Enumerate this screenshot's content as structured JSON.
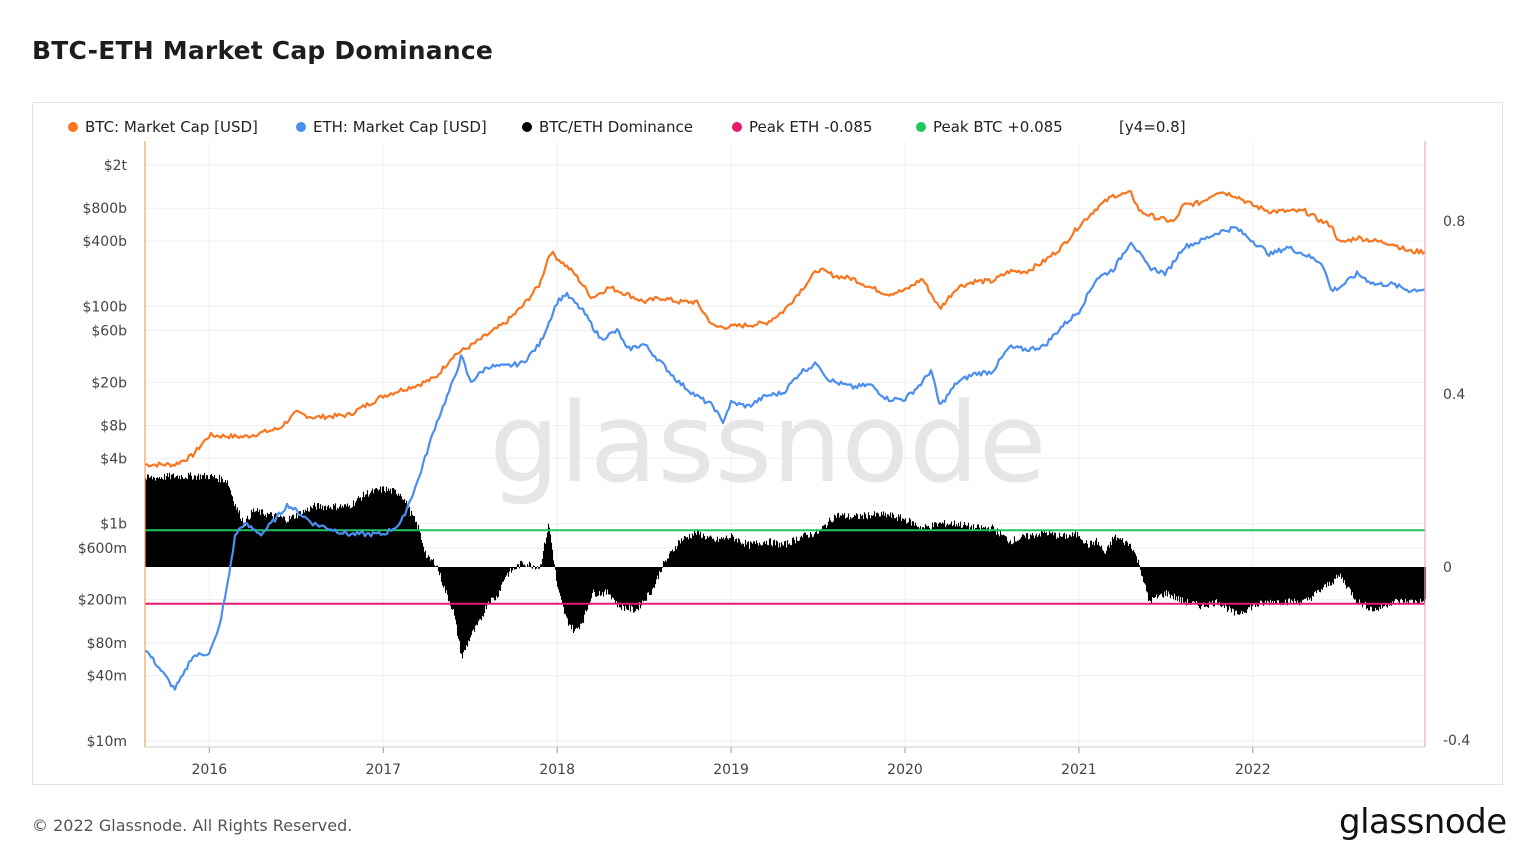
{
  "title": "BTC-ETH Market Cap Dominance",
  "footer": "© 2022 Glassnode. All Rights Reserved.",
  "brand": "glassnode",
  "watermark": "glassnode",
  "chart_data": {
    "type": "line",
    "x_ticks": [
      "2016",
      "2017",
      "2018",
      "2019",
      "2020",
      "2021",
      "2022"
    ],
    "x_range": [
      2015.63,
      2022.99
    ],
    "y_left": {
      "scale": "log",
      "ticks": [
        {
          "label": "$10m",
          "value": 10000000.0
        },
        {
          "label": "$40m",
          "value": 40000000.0
        },
        {
          "label": "$80m",
          "value": 80000000.0
        },
        {
          "label": "$200m",
          "value": 200000000.0
        },
        {
          "label": "$600m",
          "value": 600000000.0
        },
        {
          "label": "$1b",
          "value": 1000000000.0
        },
        {
          "label": "$4b",
          "value": 4000000000.0
        },
        {
          "label": "$8b",
          "value": 8000000000.0
        },
        {
          "label": "$20b",
          "value": 20000000000.0
        },
        {
          "label": "$60b",
          "value": 60000000000.0
        },
        {
          "label": "$100b",
          "value": 100000000000.0
        },
        {
          "label": "$400b",
          "value": 400000000000.0
        },
        {
          "label": "$800b",
          "value": 800000000000.0
        },
        {
          "label": "$2t",
          "value": 2000000000000.0
        }
      ]
    },
    "y_right": {
      "scale": "linear",
      "range": [
        -0.4,
        0.95
      ],
      "ticks": [
        {
          "label": "-0.4",
          "value": -0.4
        },
        {
          "label": "0",
          "value": 0
        },
        {
          "label": "0.4",
          "value": 0.4
        },
        {
          "label": "0.8",
          "value": 0.8
        }
      ]
    },
    "legend": [
      {
        "label": "BTC: Market Cap [USD]",
        "color": "#f7761f"
      },
      {
        "label": "ETH: Market Cap [USD]",
        "color": "#4a8ef0"
      },
      {
        "label": "BTC/ETH Dominance",
        "color": "#000000"
      },
      {
        "label": "Peak ETH -0.085",
        "color": "#e8196e"
      },
      {
        "label": "Peak BTC +0.085",
        "color": "#22c55e"
      },
      {
        "label": "[y4=0.8]",
        "color": ""
      }
    ],
    "legend_position": "top-left",
    "grid": true,
    "series": [
      {
        "name": "BTC: Market Cap [USD]",
        "axis": "left",
        "color": "#f7761f",
        "points": [
          [
            2015.63,
            3500000000.0
          ],
          [
            2015.8,
            3500000000.0
          ],
          [
            2015.9,
            4200000000.0
          ],
          [
            2016.0,
            6500000000.0
          ],
          [
            2016.2,
            6300000000.0
          ],
          [
            2016.4,
            7500000000.0
          ],
          [
            2016.5,
            10500000000.0
          ],
          [
            2016.6,
            9500000000.0
          ],
          [
            2016.8,
            10000000000.0
          ],
          [
            2017.0,
            15000000000.0
          ],
          [
            2017.1,
            17000000000.0
          ],
          [
            2017.2,
            19000000000.0
          ],
          [
            2017.3,
            22000000000.0
          ],
          [
            2017.4,
            35000000000.0
          ],
          [
            2017.5,
            43000000000.0
          ],
          [
            2017.6,
            55000000000.0
          ],
          [
            2017.7,
            70000000000.0
          ],
          [
            2017.8,
            100000000000.0
          ],
          [
            2017.9,
            160000000000.0
          ],
          [
            2017.96,
            320000000000.0
          ],
          [
            2018.1,
            200000000000.0
          ],
          [
            2018.2,
            120000000000.0
          ],
          [
            2018.3,
            150000000000.0
          ],
          [
            2018.4,
            130000000000.0
          ],
          [
            2018.5,
            110000000000.0
          ],
          [
            2018.6,
            120000000000.0
          ],
          [
            2018.7,
            110000000000.0
          ],
          [
            2018.8,
            110000000000.0
          ],
          [
            2018.9,
            65000000000.0
          ],
          [
            2019.0,
            65000000000.0
          ],
          [
            2019.2,
            70000000000.0
          ],
          [
            2019.3,
            90000000000.0
          ],
          [
            2019.4,
            140000000000.0
          ],
          [
            2019.5,
            220000000000.0
          ],
          [
            2019.6,
            190000000000.0
          ],
          [
            2019.7,
            180000000000.0
          ],
          [
            2019.8,
            150000000000.0
          ],
          [
            2019.9,
            130000000000.0
          ],
          [
            2020.0,
            140000000000.0
          ],
          [
            2020.1,
            180000000000.0
          ],
          [
            2020.2,
            95000000000.0
          ],
          [
            2020.3,
            150000000000.0
          ],
          [
            2020.4,
            170000000000.0
          ],
          [
            2020.5,
            170000000000.0
          ],
          [
            2020.6,
            210000000000.0
          ],
          [
            2020.7,
            210000000000.0
          ],
          [
            2020.8,
            260000000000.0
          ],
          [
            2020.9,
            350000000000.0
          ],
          [
            2021.0,
            550000000000.0
          ],
          [
            2021.1,
            800000000000.0
          ],
          [
            2021.2,
            1050000000000.0
          ],
          [
            2021.3,
            1100000000000.0
          ],
          [
            2021.35,
            750000000000.0
          ],
          [
            2021.45,
            650000000000.0
          ],
          [
            2021.55,
            600000000000.0
          ],
          [
            2021.6,
            850000000000.0
          ],
          [
            2021.7,
            900000000000.0
          ],
          [
            2021.8,
            1150000000000.0
          ],
          [
            2021.9,
            1050000000000.0
          ],
          [
            2022.0,
            850000000000.0
          ],
          [
            2022.1,
            750000000000.0
          ],
          [
            2022.2,
            750000000000.0
          ],
          [
            2022.3,
            750000000000.0
          ],
          [
            2022.4,
            600000000000.0
          ],
          [
            2022.45,
            560000000000.0
          ],
          [
            2022.5,
            380000000000.0
          ],
          [
            2022.6,
            430000000000.0
          ],
          [
            2022.7,
            400000000000.0
          ],
          [
            2022.8,
            380000000000.0
          ],
          [
            2022.9,
            320000000000.0
          ],
          [
            2022.99,
            320000000000.0
          ]
        ]
      },
      {
        "name": "ETH: Market Cap [USD]",
        "axis": "left",
        "color": "#4a8ef0",
        "points": [
          [
            2015.63,
            70000000.0
          ],
          [
            2015.7,
            50000000.0
          ],
          [
            2015.8,
            30000000.0
          ],
          [
            2015.85,
            40000000.0
          ],
          [
            2015.9,
            60000000.0
          ],
          [
            2016.0,
            65000000.0
          ],
          [
            2016.05,
            100000000.0
          ],
          [
            2016.1,
            250000000.0
          ],
          [
            2016.15,
            800000000.0
          ],
          [
            2016.2,
            1000000000.0
          ],
          [
            2016.3,
            800000000.0
          ],
          [
            2016.4,
            1200000000.0
          ],
          [
            2016.45,
            1500000000.0
          ],
          [
            2016.6,
            1000000000.0
          ],
          [
            2016.8,
            800000000.0
          ],
          [
            2017.0,
            800000000.0
          ],
          [
            2017.1,
            1000000000.0
          ],
          [
            2017.2,
            2500000000.0
          ],
          [
            2017.25,
            4500000000.0
          ],
          [
            2017.3,
            8000000000.0
          ],
          [
            2017.4,
            20000000000.0
          ],
          [
            2017.45,
            35000000000.0
          ],
          [
            2017.5,
            20000000000.0
          ],
          [
            2017.6,
            28000000000.0
          ],
          [
            2017.7,
            28000000000.0
          ],
          [
            2017.8,
            30000000000.0
          ],
          [
            2017.9,
            45000000000.0
          ],
          [
            2017.95,
            70000000000.0
          ],
          [
            2018.0,
            110000000000.0
          ],
          [
            2018.05,
            130000000000.0
          ],
          [
            2018.15,
            90000000000.0
          ],
          [
            2018.25,
            50000000000.0
          ],
          [
            2018.35,
            60000000000.0
          ],
          [
            2018.4,
            40000000000.0
          ],
          [
            2018.5,
            45000000000.0
          ],
          [
            2018.6,
            30000000000.0
          ],
          [
            2018.7,
            20000000000.0
          ],
          [
            2018.8,
            15000000000.0
          ],
          [
            2018.9,
            12000000000.0
          ],
          [
            2018.95,
            8500000000.0
          ],
          [
            2019.0,
            13000000000.0
          ],
          [
            2019.1,
            12000000000.0
          ],
          [
            2019.2,
            15000000000.0
          ],
          [
            2019.3,
            16000000000.0
          ],
          [
            2019.4,
            25000000000.0
          ],
          [
            2019.5,
            30000000000.0
          ],
          [
            2019.55,
            22000000000.0
          ],
          [
            2019.6,
            20000000000.0
          ],
          [
            2019.7,
            18000000000.0
          ],
          [
            2019.8,
            19000000000.0
          ],
          [
            2019.9,
            14000000000.0
          ],
          [
            2020.0,
            14000000000.0
          ],
          [
            2020.1,
            20000000000.0
          ],
          [
            2020.15,
            26000000000.0
          ],
          [
            2020.2,
            12000000000.0
          ],
          [
            2020.3,
            20000000000.0
          ],
          [
            2020.4,
            24000000000.0
          ],
          [
            2020.5,
            25000000000.0
          ],
          [
            2020.6,
            42000000000.0
          ],
          [
            2020.7,
            40000000000.0
          ],
          [
            2020.8,
            43000000000.0
          ],
          [
            2020.9,
            65000000000.0
          ],
          [
            2021.0,
            90000000000.0
          ],
          [
            2021.1,
            180000000000.0
          ],
          [
            2021.2,
            220000000000.0
          ],
          [
            2021.3,
            400000000000.0
          ],
          [
            2021.35,
            300000000000.0
          ],
          [
            2021.4,
            230000000000.0
          ],
          [
            2021.5,
            200000000000.0
          ],
          [
            2021.6,
            350000000000.0
          ],
          [
            2021.7,
            400000000000.0
          ],
          [
            2021.8,
            480000000000.0
          ],
          [
            2021.9,
            530000000000.0
          ],
          [
            2022.0,
            400000000000.0
          ],
          [
            2022.1,
            300000000000.0
          ],
          [
            2022.2,
            350000000000.0
          ],
          [
            2022.3,
            300000000000.0
          ],
          [
            2022.4,
            250000000000.0
          ],
          [
            2022.45,
            140000000000.0
          ],
          [
            2022.5,
            150000000000.0
          ],
          [
            2022.6,
            200000000000.0
          ],
          [
            2022.7,
            160000000000.0
          ],
          [
            2022.8,
            160000000000.0
          ],
          [
            2022.9,
            140000000000.0
          ],
          [
            2022.99,
            145000000000.0
          ]
        ]
      },
      {
        "name": "BTC/ETH Dominance",
        "axis": "right",
        "type": "area",
        "color": "#000000",
        "points": [
          [
            2015.63,
            0.205
          ],
          [
            2015.8,
            0.21
          ],
          [
            2016.0,
            0.21
          ],
          [
            2016.1,
            0.2
          ],
          [
            2016.15,
            0.14
          ],
          [
            2016.2,
            0.1
          ],
          [
            2016.25,
            0.13
          ],
          [
            2016.35,
            0.12
          ],
          [
            2016.45,
            0.11
          ],
          [
            2016.6,
            0.14
          ],
          [
            2016.8,
            0.14
          ],
          [
            2016.9,
            0.17
          ],
          [
            2017.0,
            0.18
          ],
          [
            2017.1,
            0.17
          ],
          [
            2017.2,
            0.09
          ],
          [
            2017.25,
            0.02
          ],
          [
            2017.3,
            0.01
          ],
          [
            2017.35,
            -0.05
          ],
          [
            2017.4,
            -0.1
          ],
          [
            2017.45,
            -0.21
          ],
          [
            2017.5,
            -0.16
          ],
          [
            2017.55,
            -0.13
          ],
          [
            2017.6,
            -0.08
          ],
          [
            2017.65,
            -0.07
          ],
          [
            2017.7,
            -0.02
          ],
          [
            2017.8,
            0.01
          ],
          [
            2017.9,
            0.0
          ],
          [
            2017.95,
            0.1
          ],
          [
            2018.0,
            -0.05
          ],
          [
            2018.05,
            -0.12
          ],
          [
            2018.1,
            -0.15
          ],
          [
            2018.15,
            -0.12
          ],
          [
            2018.2,
            -0.06
          ],
          [
            2018.3,
            -0.06
          ],
          [
            2018.35,
            -0.09
          ],
          [
            2018.45,
            -0.1
          ],
          [
            2018.55,
            -0.05
          ],
          [
            2018.6,
            0.0
          ],
          [
            2018.7,
            0.06
          ],
          [
            2018.8,
            0.08
          ],
          [
            2018.9,
            0.06
          ],
          [
            2019.0,
            0.07
          ],
          [
            2019.1,
            0.05
          ],
          [
            2019.2,
            0.06
          ],
          [
            2019.3,
            0.05
          ],
          [
            2019.4,
            0.07
          ],
          [
            2019.5,
            0.08
          ],
          [
            2019.6,
            0.12
          ],
          [
            2019.7,
            0.115
          ],
          [
            2019.8,
            0.12
          ],
          [
            2019.9,
            0.12
          ],
          [
            2020.0,
            0.11
          ],
          [
            2020.1,
            0.09
          ],
          [
            2020.2,
            0.1
          ],
          [
            2020.3,
            0.1
          ],
          [
            2020.4,
            0.09
          ],
          [
            2020.5,
            0.09
          ],
          [
            2020.6,
            0.06
          ],
          [
            2020.7,
            0.07
          ],
          [
            2020.8,
            0.08
          ],
          [
            2020.9,
            0.07
          ],
          [
            2021.0,
            0.075
          ],
          [
            2021.05,
            0.05
          ],
          [
            2021.1,
            0.06
          ],
          [
            2021.15,
            0.03
          ],
          [
            2021.2,
            0.07
          ],
          [
            2021.3,
            0.05
          ],
          [
            2021.35,
            0.0
          ],
          [
            2021.4,
            -0.08
          ],
          [
            2021.5,
            -0.06
          ],
          [
            2021.6,
            -0.08
          ],
          [
            2021.7,
            -0.09
          ],
          [
            2021.8,
            -0.08
          ],
          [
            2021.9,
            -0.11
          ],
          [
            2022.0,
            -0.09
          ],
          [
            2022.1,
            -0.08
          ],
          [
            2022.2,
            -0.08
          ],
          [
            2022.3,
            -0.08
          ],
          [
            2022.4,
            -0.05
          ],
          [
            2022.5,
            -0.02
          ],
          [
            2022.6,
            -0.08
          ],
          [
            2022.7,
            -0.1
          ],
          [
            2022.8,
            -0.08
          ],
          [
            2022.9,
            -0.08
          ],
          [
            2022.99,
            -0.08
          ]
        ]
      }
    ],
    "reference_lines": [
      {
        "name": "Peak BTC +0.085",
        "value": 0.085,
        "color": "#22c55e"
      },
      {
        "name": "Peak ETH -0.085",
        "value": -0.085,
        "color": "#e8196e"
      }
    ]
  }
}
